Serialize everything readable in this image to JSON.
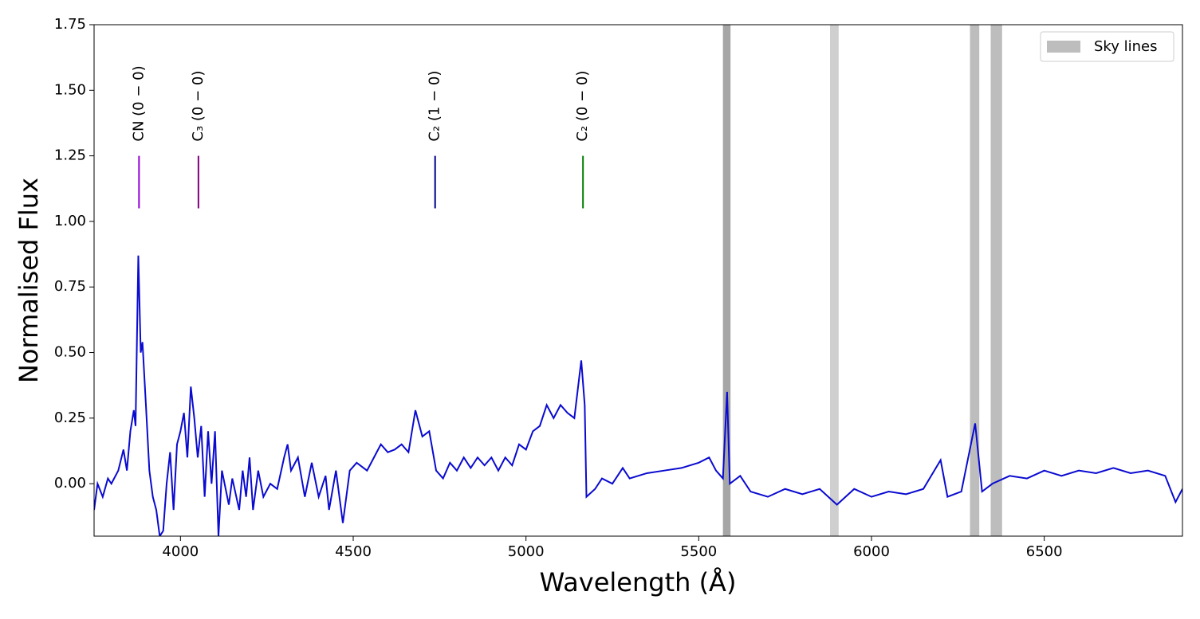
{
  "chart_data": {
    "type": "line",
    "xlabel": "Wavelength (Å)",
    "ylabel": "Normalised Flux",
    "xlim": [
      3750,
      6900
    ],
    "ylim": [
      -0.2,
      1.75
    ],
    "xticks": [
      4000,
      4500,
      5000,
      5500,
      6000,
      6500
    ],
    "yticks": [
      {
        "value": 0,
        "label": "0.00"
      },
      0.25,
      {
        "value": 0.5,
        "label": "0.50"
      },
      0.75,
      {
        "value": 1,
        "label": "1.00"
      },
      1.25,
      {
        "value": 1.5,
        "label": "1.50"
      },
      1.75
    ],
    "color": "#0a0ad0",
    "x": [
      3750,
      3760,
      3775,
      3790,
      3800,
      3820,
      3835,
      3845,
      3855,
      3865,
      3870,
      3878,
      3885,
      3890,
      3900,
      3910,
      3920,
      3930,
      3940,
      3950,
      3960,
      3970,
      3980,
      3990,
      4000,
      4010,
      4020,
      4030,
      4040,
      4050,
      4060,
      4070,
      4080,
      4090,
      4100,
      4110,
      4120,
      4140,
      4150,
      4170,
      4180,
      4190,
      4200,
      4210,
      4225,
      4240,
      4260,
      4280,
      4300,
      4310,
      4320,
      4340,
      4360,
      4380,
      4400,
      4420,
      4430,
      4450,
      4470,
      4490,
      4510,
      4540,
      4560,
      4580,
      4600,
      4620,
      4640,
      4660,
      4680,
      4700,
      4720,
      4740,
      4760,
      4780,
      4800,
      4820,
      4840,
      4860,
      4880,
      4900,
      4920,
      4940,
      4960,
      4980,
      5000,
      5020,
      5040,
      5060,
      5080,
      5100,
      5120,
      5140,
      5160,
      5170,
      5175,
      5200,
      5220,
      5250,
      5280,
      5300,
      5350,
      5400,
      5450,
      5500,
      5530,
      5550,
      5570,
      5582,
      5590,
      5620,
      5650,
      5700,
      5750,
      5800,
      5850,
      5900,
      5950,
      6000,
      6050,
      6100,
      6150,
      6200,
      6220,
      6260,
      6300,
      6320,
      6350,
      6400,
      6450,
      6500,
      6550,
      6600,
      6650,
      6700,
      6750,
      6800,
      6850,
      6880,
      6900
    ],
    "values": [
      -0.1,
      0.0,
      -0.05,
      0.02,
      0.0,
      0.05,
      0.13,
      0.05,
      0.2,
      0.28,
      0.22,
      0.87,
      0.5,
      0.54,
      0.3,
      0.05,
      -0.05,
      -0.1,
      -0.2,
      -0.18,
      0.0,
      0.12,
      -0.1,
      0.15,
      0.2,
      0.27,
      0.1,
      0.37,
      0.25,
      0.1,
      0.22,
      -0.05,
      0.2,
      0.0,
      0.2,
      -0.2,
      0.05,
      -0.08,
      0.02,
      -0.1,
      0.05,
      -0.05,
      0.1,
      -0.1,
      0.05,
      -0.05,
      0.0,
      -0.02,
      0.1,
      0.15,
      0.05,
      0.1,
      -0.05,
      0.08,
      -0.05,
      0.03,
      -0.1,
      0.05,
      -0.15,
      0.05,
      0.08,
      0.05,
      0.1,
      0.15,
      0.12,
      0.13,
      0.15,
      0.12,
      0.28,
      0.18,
      0.2,
      0.05,
      0.02,
      0.08,
      0.05,
      0.1,
      0.06,
      0.1,
      0.07,
      0.1,
      0.05,
      0.1,
      0.07,
      0.15,
      0.13,
      0.2,
      0.22,
      0.3,
      0.25,
      0.3,
      0.27,
      0.25,
      0.47,
      0.3,
      -0.05,
      -0.02,
      0.02,
      0.0,
      0.06,
      0.02,
      0.04,
      0.05,
      0.06,
      0.08,
      0.1,
      0.05,
      0.02,
      0.35,
      0.0,
      0.03,
      -0.03,
      -0.05,
      -0.02,
      -0.04,
      -0.02,
      -0.08,
      -0.02,
      -0.05,
      -0.03,
      -0.04,
      -0.02,
      0.09,
      -0.05,
      -0.03,
      0.23,
      -0.03,
      0.0,
      0.03,
      0.02,
      0.05,
      0.03,
      0.05,
      0.04,
      0.06,
      0.04,
      0.05,
      0.03,
      -0.07,
      -0.02
    ],
    "sky_lines": {
      "name": "Sky lines",
      "color": "#bdbdbd",
      "spans": [
        {
          "from": 5570,
          "to": 5592,
          "color": "#a6a6a6"
        },
        {
          "from": 5880,
          "to": 5905,
          "color": "#cfcfcf"
        },
        {
          "from": 6285,
          "to": 6312,
          "color": "#bdbdbd"
        },
        {
          "from": 6345,
          "to": 6378,
          "color": "#bdbdbd"
        }
      ]
    },
    "markers": [
      {
        "label": "CN (0 − 0)",
        "x": 3880,
        "y": [
          1.05,
          1.25
        ],
        "color": "#9400d3"
      },
      {
        "label": "C₃ (0 − 0)",
        "x": 4052,
        "y": [
          1.05,
          1.25
        ],
        "color": "#800080"
      },
      {
        "label": "C₂ (1 − 0)",
        "x": 4737,
        "y": [
          1.05,
          1.25
        ],
        "color": "#00008b"
      },
      {
        "label": "C₂ (0 − 0)",
        "x": 5165,
        "y": [
          1.05,
          1.25
        ],
        "color": "#008000"
      }
    ],
    "legend": "upper right"
  }
}
